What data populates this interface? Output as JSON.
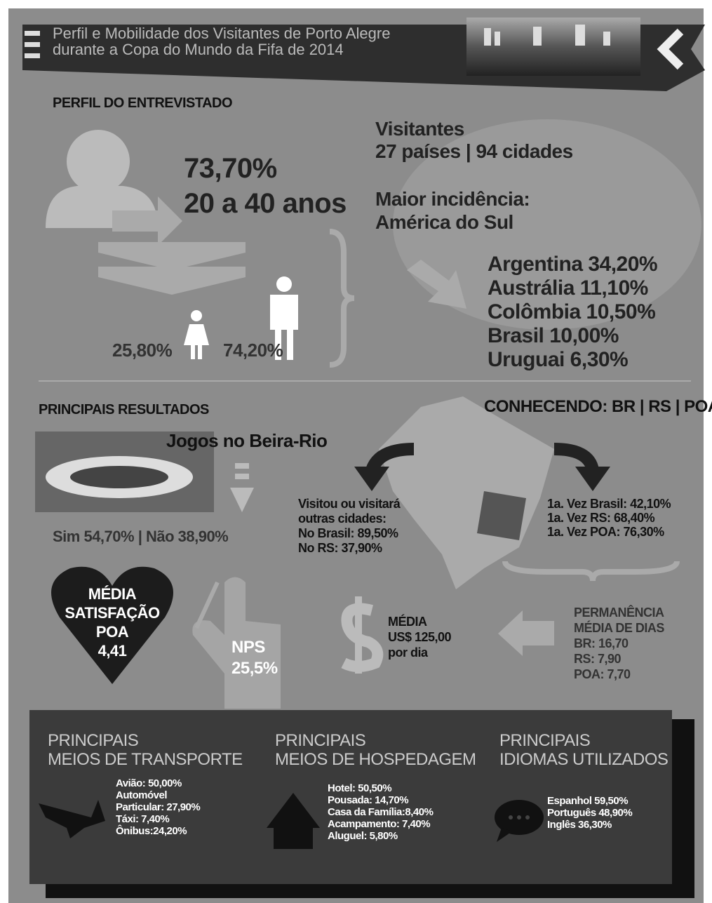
{
  "header": {
    "title_lines": [
      "Perfil e Mobilidade dos Visitantes de Porto Alegre",
      "durante a Copa do Mundo da Fifa de 2014"
    ]
  },
  "profile": {
    "heading": "PERFIL DO ENTREVISTADO",
    "age_share": "73,70%",
    "age_range": "20 a 40 anos",
    "female": "25,80%",
    "male": "74,20%",
    "visitors": [
      "Visitantes",
      "27 países | 94 cidades"
    ],
    "incidence": [
      "Maior incidência:",
      "América do Sul"
    ],
    "countries": [
      "Argentina 34,20%",
      "Austrália 11,10%",
      "Colômbia 10,50%",
      "Brasil 10,00%",
      "Uruguai 6,30%"
    ]
  },
  "results": {
    "heading": "PRINCIPAIS RESULTADOS",
    "games": "Jogos no Beira-Rio",
    "games_answer": "Sim 54,70% | Não 38,90%",
    "satisfaction": [
      "MÉDIA",
      "SATISFAÇÃO",
      "POA",
      "4,41"
    ],
    "nps": [
      "NPS",
      "25,5%"
    ],
    "spending": [
      "MÉDIA",
      "US$ 125,00",
      "por dia"
    ]
  },
  "knowing": {
    "heading": "CONHECENDO: BR | RS | POA",
    "other_cities": [
      "Visitou ou visitará",
      "outras cidades:",
      "No Brasil: 89,50%",
      "No RS: 37,90%"
    ],
    "first_time": [
      "1a. Vez Brasil: 42,10%",
      "1a. Vez RS: 68,40%",
      "1a. Vez POA: 76,30%"
    ],
    "stay": [
      "PERMANÊNCIA",
      "MÉDIA DE DIAS",
      "BR: 16,70",
      "RS: 7,90",
      "POA: 7,70"
    ]
  },
  "bottom": {
    "transport": {
      "title": [
        "PRINCIPAIS",
        "MEIOS DE TRANSPORTE"
      ],
      "items": [
        "Avião: 50,00%",
        "Automóvel",
        "Particular: 27,90%",
        "Táxi: 7,40%",
        "Ônibus:24,20%"
      ]
    },
    "lodging": {
      "title": [
        "PRINCIPAIS",
        "MEIOS DE HOSPEDAGEM"
      ],
      "items": [
        "Hotel: 50,50%",
        "Pousada: 14,70%",
        "Casa da Família:8,40%",
        "Acampamento: 7,40%",
        "Aluguel: 5,80%"
      ]
    },
    "languages": {
      "title": [
        "PRINCIPAIS",
        "IDIOMAS UTILIZADOS"
      ],
      "items": [
        "Espanhol 59,50%",
        "Português 48,90%",
        "Inglês 36,30%"
      ]
    }
  }
}
